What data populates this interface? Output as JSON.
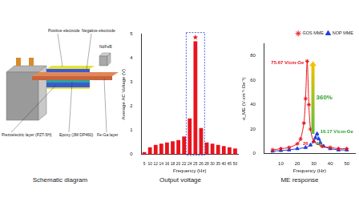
{
  "schematic": {
    "title": "Schematic diagram",
    "labels": [
      "Positive electrode",
      "Negative electrode",
      "NdFeB",
      "Piezoelectric layer (PZT-5H)",
      "Epoxy (3M DP460)",
      "Fe-Ga layer"
    ]
  },
  "chart_data": [
    {
      "type": "bar",
      "title": "Output voltage",
      "x_label": "Frequency (Hz)",
      "y_label": "Average AC Voltage (V)",
      "categories": [
        "5",
        "10",
        "12",
        "14",
        "16",
        "18",
        "20",
        "22",
        "24",
        "25",
        "26",
        "28",
        "30",
        "35",
        "40",
        "45",
        "50"
      ],
      "values": [
        0.1,
        0.3,
        0.4,
        0.45,
        0.5,
        0.55,
        0.6,
        0.75,
        1.5,
        4.7,
        1.1,
        0.5,
        0.45,
        0.4,
        0.35,
        0.3,
        0.25
      ],
      "color": "#e8141e",
      "ylim": [
        0,
        5
      ],
      "yticks": [
        0,
        1,
        2,
        3,
        4,
        5
      ],
      "grid": false
    },
    {
      "type": "line",
      "title": "ME response",
      "x_label": "Frequency (Hz)",
      "y_label": "α_ME (V·cm⁻¹·Oe⁻¹)",
      "series": [
        {
          "name": "GOS MME",
          "color": "#e8141e",
          "marker": "star",
          "x": [
            5,
            10,
            15,
            20,
            22,
            24,
            25,
            26,
            27,
            28,
            30,
            35,
            40,
            45,
            50
          ],
          "values": [
            3,
            4,
            5,
            8,
            12,
            25,
            45,
            75.67,
            40,
            20,
            10,
            6,
            5,
            4,
            4
          ]
        },
        {
          "name": "NOP MME",
          "color": "#1f3fd8",
          "marker": "triangle",
          "x": [
            5,
            10,
            15,
            20,
            25,
            28,
            30,
            31,
            32,
            33,
            34,
            36,
            40,
            45,
            50
          ],
          "values": [
            2,
            2.5,
            3,
            4,
            5,
            7,
            10,
            13,
            16.17,
            12,
            9,
            6,
            4,
            3,
            3
          ]
        }
      ],
      "xlim": [
        0,
        55
      ],
      "xticks": [
        10,
        20,
        30,
        40,
        50
      ],
      "ylim": [
        0,
        90
      ],
      "yticks": [
        0,
        20,
        40,
        60,
        80
      ],
      "legend": "upper right",
      "grid": false,
      "annotations": [
        {
          "text": "75.67 V/cm·Oe",
          "color": "#e8141e"
        },
        {
          "text": "360%",
          "color": "#2e9e2e"
        },
        {
          "text": "16.17 V/cm·Oe",
          "color": "#2e9e2e"
        },
        {
          "text": "26",
          "color": "#e8141e"
        },
        {
          "text": "32",
          "color": "#2e9e2e"
        }
      ]
    }
  ]
}
